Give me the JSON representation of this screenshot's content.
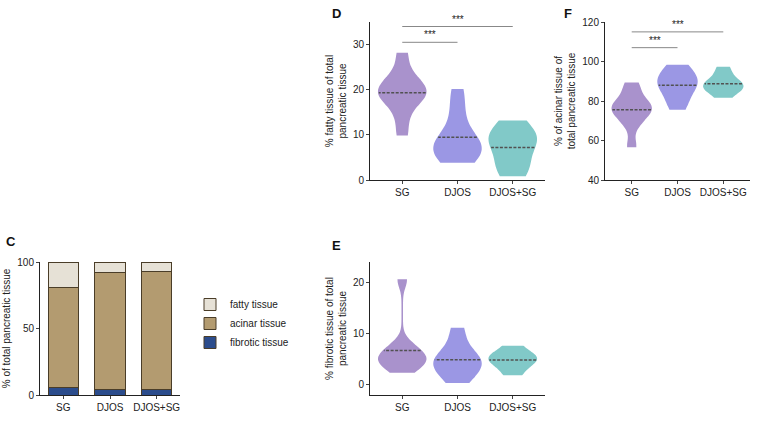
{
  "chart_data": [
    {
      "label": "C",
      "type": "bar",
      "stacked": true,
      "grid": false,
      "legend": "right",
      "categories": [
        "SG",
        "DJOS",
        "DJOS+SG"
      ],
      "ylabel": "% of total pancreatic tissue",
      "ylim": [
        0,
        100
      ],
      "yticks": [
        0,
        50,
        100
      ],
      "series": [
        {
          "name": "fibrotic tissue",
          "color": "#2b4c8c",
          "values": [
            5.5,
            4.5,
            4.5
          ]
        },
        {
          "name": "acinar tissue",
          "color": "#b39b70",
          "values": [
            75,
            87.5,
            88.5
          ]
        },
        {
          "name": "fatty tissue",
          "color": "#e6e1d6",
          "values": [
            19.5,
            8,
            7
          ]
        }
      ]
    },
    {
      "label": "D",
      "type": "violin",
      "grid": false,
      "categories": [
        "SG",
        "DJOS",
        "DJOS+SG"
      ],
      "colors": [
        "#9b7fc4",
        "#8a86e0",
        "#6cc0bf"
      ],
      "ylabel": "% fatty tissue of total pancreatic tissue",
      "ylim": [
        0,
        35
      ],
      "yticks": [
        0,
        10,
        20,
        30
      ],
      "values": [
        [
          10,
          14,
          17,
          18,
          19,
          19.5,
          20,
          21,
          22,
          24,
          28
        ],
        [
          4,
          5,
          6,
          7,
          7.5,
          8,
          9,
          12,
          16,
          20
        ],
        [
          1,
          3,
          4,
          8,
          9,
          9.5,
          10,
          13
        ]
      ],
      "annotations": [
        {
          "from": "SG",
          "to": "DJOS",
          "y": 30.5,
          "text": "***"
        },
        {
          "from": "SG",
          "to": "DJOS+SG",
          "y": 34,
          "text": "***"
        }
      ]
    },
    {
      "label": "E",
      "type": "violin",
      "grid": false,
      "categories": [
        "SG",
        "DJOS",
        "DJOS+SG"
      ],
      "colors": [
        "#9b7fc4",
        "#8a86e0",
        "#6cc0bf"
      ],
      "ylabel": "% fibrotic tissue of total pancreatic tissue",
      "ylim": [
        -2,
        24
      ],
      "yticks": [
        0,
        10,
        20
      ],
      "values": [
        [
          2.5,
          3.5,
          4,
          5,
          5,
          5.5,
          6,
          7,
          8,
          20.5
        ],
        [
          0.5,
          2,
          3,
          4,
          4.5,
          5,
          6,
          8,
          11
        ],
        [
          2,
          3.5,
          4.5,
          5,
          5.5,
          6,
          7.5
        ]
      ]
    },
    {
      "label": "F",
      "type": "violin",
      "grid": false,
      "categories": [
        "SG",
        "DJOS",
        "DJOS+SG"
      ],
      "colors": [
        "#9b7fc4",
        "#8a86e0",
        "#6cc0bf"
      ],
      "ylabel": "% of acinar tissue of total pancreatic tissue",
      "ylim": [
        40,
        120
      ],
      "yticks": [
        40,
        60,
        80,
        100,
        120
      ],
      "values": [
        [
          57,
          68,
          72,
          74,
          76,
          77,
          78,
          80,
          85,
          89
        ],
        [
          76,
          80,
          84,
          88,
          89,
          90,
          92,
          95,
          98
        ],
        [
          82,
          85,
          87,
          87.5,
          88,
          90,
          93,
          97
        ]
      ],
      "annotations": [
        {
          "from": "SG",
          "to": "DJOS",
          "y": 107,
          "text": "***"
        },
        {
          "from": "SG",
          "to": "DJOS+SG",
          "y": 115,
          "text": "***"
        }
      ]
    }
  ]
}
